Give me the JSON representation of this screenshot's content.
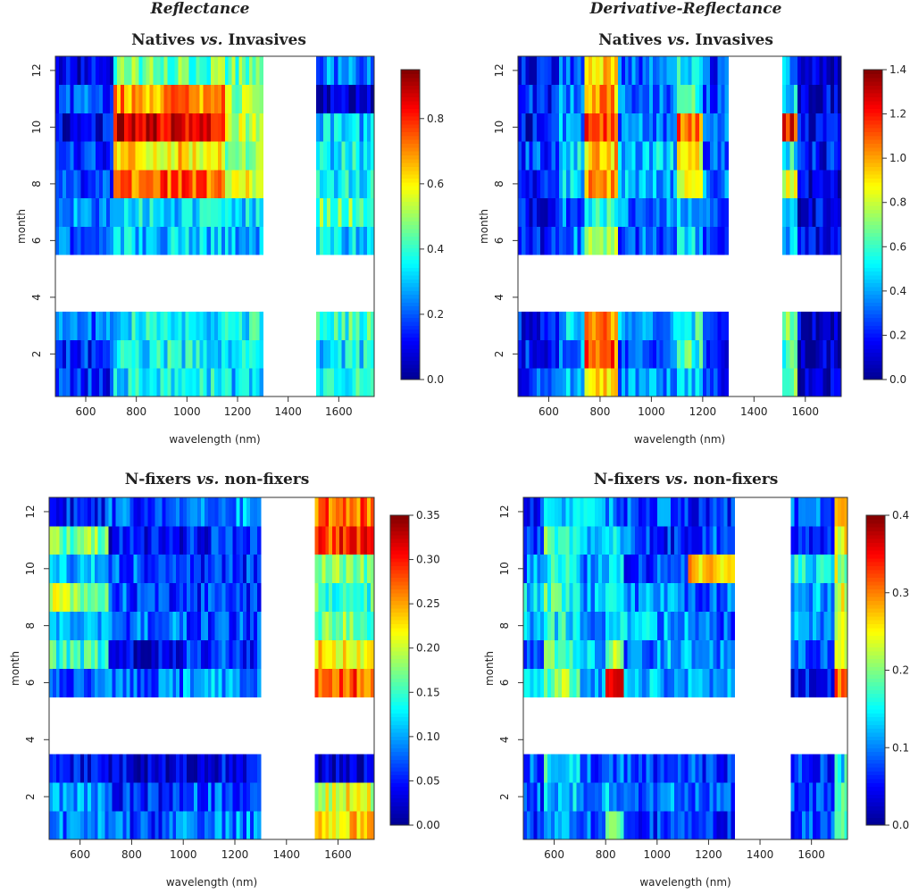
{
  "figure": {
    "column_titles": [
      "Reflectance",
      "Derivative-Reflectance"
    ],
    "row_titles": [
      {
        "left": "Natives",
        "mid": " vs. ",
        "right": "Invasives"
      },
      {
        "left": "N-fixers",
        "mid": " vs. ",
        "right": "non-fixers"
      }
    ]
  },
  "colormap": [
    "#00008f",
    "#0000ff",
    "#0080ff",
    "#00ffff",
    "#80ff80",
    "#ffff00",
    "#ff8000",
    "#ff0000",
    "#800000"
  ],
  "chart_data": [
    {
      "type": "heatmap",
      "id": "p1",
      "title": "Natives vs. Invasives",
      "xlabel": "wavelength (nm)",
      "ylabel": "month",
      "xlim": [
        480,
        1740
      ],
      "ylim": [
        0.5,
        12.5
      ],
      "xticks": [
        600,
        800,
        1000,
        1200,
        1400,
        1600
      ],
      "yticks": [
        2,
        4,
        6,
        8,
        10,
        12
      ],
      "colorbar_range": [
        0,
        0.95
      ],
      "colorbar_ticks": [
        {
          "v": 0,
          "label": "0.0"
        },
        {
          "v": 0.2,
          "label": "0.2"
        },
        {
          "v": 0.4,
          "label": "0.4"
        },
        {
          "v": 0.6,
          "label": "0.6"
        },
        {
          "v": 0.8,
          "label": "0.8"
        }
      ],
      "missing_months": [
        4,
        5
      ],
      "missing_wavelength_ranges": [
        [
          1300,
          1510
        ]
      ],
      "segments": [
        {
          "x0": 480,
          "x1": 710
        },
        {
          "x0": 710,
          "x1": 1150
        },
        {
          "x0": 1150,
          "x1": 1300
        },
        {
          "x0": 1510,
          "x1": 1740
        }
      ],
      "values": {
        "1": [
          0.15,
          0.35,
          0.32,
          0.38
        ],
        "2": [
          0.15,
          0.36,
          0.36,
          0.33
        ],
        "3": [
          0.22,
          0.35,
          0.36,
          0.4
        ],
        "6": [
          0.2,
          0.3,
          0.28,
          0.33
        ],
        "7": [
          0.25,
          0.33,
          0.31,
          0.45
        ],
        "8": [
          0.15,
          0.75,
          0.55,
          0.35
        ],
        "9": [
          0.15,
          0.62,
          0.5,
          0.35
        ],
        "10": [
          0.1,
          0.85,
          0.55,
          0.3
        ],
        "11": [
          0.2,
          0.7,
          0.5,
          0.05
        ],
        "12": [
          0.08,
          0.45,
          0.45,
          0.25
        ]
      }
    },
    {
      "type": "heatmap",
      "id": "p2",
      "title": "Natives vs. Invasives",
      "xlabel": "wavelength (nm)",
      "ylabel": "month",
      "xlim": [
        480,
        1740
      ],
      "ylim": [
        0.5,
        12.5
      ],
      "xticks": [
        600,
        800,
        1000,
        1200,
        1400,
        1600
      ],
      "yticks": [
        2,
        4,
        6,
        8,
        10,
        12
      ],
      "colorbar_range": [
        0,
        1.4
      ],
      "colorbar_ticks": [
        {
          "v": 0,
          "label": "0.0"
        },
        {
          "v": 0.2,
          "label": "0.2"
        },
        {
          "v": 0.4,
          "label": "0.4"
        },
        {
          "v": 0.6,
          "label": "0.6"
        },
        {
          "v": 0.8,
          "label": "0.8"
        },
        {
          "v": 1.0,
          "label": "1.0"
        },
        {
          "v": 1.2,
          "label": "1.2"
        },
        {
          "v": 1.4,
          "label": "1.4"
        }
      ],
      "missing_months": [
        4,
        5
      ],
      "missing_wavelength_ranges": [
        [
          1300,
          1510
        ]
      ],
      "segments": [
        {
          "x0": 480,
          "x1": 640
        },
        {
          "x0": 640,
          "x1": 740
        },
        {
          "x0": 740,
          "x1": 870
        },
        {
          "x0": 870,
          "x1": 1100
        },
        {
          "x0": 1100,
          "x1": 1200
        },
        {
          "x0": 1200,
          "x1": 1300
        },
        {
          "x0": 1510,
          "x1": 1570
        },
        {
          "x0": 1570,
          "x1": 1740
        }
      ],
      "values": {
        "1": [
          0.25,
          0.4,
          0.95,
          0.35,
          0.45,
          0.25,
          0.7,
          0.1
        ],
        "2": [
          0.2,
          0.35,
          1.1,
          0.3,
          0.6,
          0.2,
          0.6,
          0.12
        ],
        "3": [
          0.18,
          0.45,
          1.0,
          0.4,
          0.55,
          0.3,
          0.65,
          0.1
        ],
        "6": [
          0.2,
          0.35,
          0.7,
          0.3,
          0.45,
          0.25,
          0.4,
          0.15
        ],
        "7": [
          0.15,
          0.3,
          0.6,
          0.35,
          0.4,
          0.25,
          0.5,
          0.15
        ],
        "8": [
          0.2,
          0.45,
          1.0,
          0.4,
          0.9,
          0.35,
          0.8,
          0.15
        ],
        "9": [
          0.25,
          0.5,
          0.95,
          0.45,
          0.85,
          0.3,
          0.55,
          0.18
        ],
        "10": [
          0.15,
          0.4,
          1.15,
          0.35,
          1.1,
          0.3,
          1.2,
          0.15
        ],
        "11": [
          0.2,
          0.35,
          1.0,
          0.3,
          0.6,
          0.25,
          0.45,
          0.12
        ],
        "12": [
          0.15,
          0.3,
          0.95,
          0.3,
          0.5,
          0.25,
          0.4,
          0.1
        ]
      }
    },
    {
      "type": "heatmap",
      "id": "p3",
      "title": "N-fixers vs. non-fixers",
      "xlabel": "wavelength (nm)",
      "ylabel": "month",
      "xlim": [
        480,
        1740
      ],
      "ylim": [
        0.5,
        12.5
      ],
      "xticks": [
        600,
        800,
        1000,
        1200,
        1400,
        1600
      ],
      "yticks": [
        2,
        4,
        6,
        8,
        10,
        12
      ],
      "colorbar_range": [
        0,
        0.35
      ],
      "colorbar_ticks": [
        {
          "v": 0,
          "label": "0.00"
        },
        {
          "v": 0.05,
          "label": "0.05"
        },
        {
          "v": 0.1,
          "label": "0.10"
        },
        {
          "v": 0.15,
          "label": "0.15"
        },
        {
          "v": 0.2,
          "label": "0.20"
        },
        {
          "v": 0.25,
          "label": "0.25"
        },
        {
          "v": 0.3,
          "label": "0.30"
        },
        {
          "v": 0.35,
          "label": "0.35"
        }
      ],
      "missing_months": [
        4,
        5
      ],
      "missing_wavelength_ranges": [
        [
          1300,
          1510
        ]
      ],
      "segments": [
        {
          "x0": 480,
          "x1": 710
        },
        {
          "x0": 710,
          "x1": 1000
        },
        {
          "x0": 1000,
          "x1": 1300
        },
        {
          "x0": 1510,
          "x1": 1740
        }
      ],
      "values": {
        "1": [
          0.08,
          0.07,
          0.09,
          0.23
        ],
        "2": [
          0.09,
          0.05,
          0.07,
          0.21
        ],
        "3": [
          0.04,
          0.03,
          0.04,
          0.02
        ],
        "6": [
          0.07,
          0.08,
          0.1,
          0.28
        ],
        "7": [
          0.15,
          0.03,
          0.06,
          0.23
        ],
        "8": [
          0.11,
          0.08,
          0.07,
          0.17
        ],
        "9": [
          0.19,
          0.07,
          0.06,
          0.15
        ],
        "10": [
          0.1,
          0.07,
          0.06,
          0.17
        ],
        "11": [
          0.17,
          0.04,
          0.05,
          0.29
        ],
        "12": [
          0.05,
          0.07,
          0.1,
          0.27
        ]
      }
    },
    {
      "type": "heatmap",
      "id": "p4",
      "title": "N-fixers vs. non-fixers",
      "xlabel": "wavelength (nm)",
      "ylabel": "month",
      "xlim": [
        480,
        1740
      ],
      "ylim": [
        0.5,
        12.5
      ],
      "xticks": [
        600,
        800,
        1000,
        1200,
        1400,
        1600
      ],
      "yticks": [
        2,
        4,
        6,
        8,
        10,
        12
      ],
      "colorbar_range": [
        0,
        0.4
      ],
      "colorbar_ticks": [
        {
          "v": 0,
          "label": "0.0"
        },
        {
          "v": 0.1,
          "label": "0.1"
        },
        {
          "v": 0.2,
          "label": "0.2"
        },
        {
          "v": 0.3,
          "label": "0.3"
        },
        {
          "v": 0.4,
          "label": "0.4"
        }
      ],
      "missing_months": [
        4,
        5
      ],
      "missing_wavelength_ranges": [
        [
          1300,
          1520
        ]
      ],
      "segments": [
        {
          "x0": 480,
          "x1": 560
        },
        {
          "x0": 560,
          "x1": 700
        },
        {
          "x0": 700,
          "x1": 800
        },
        {
          "x0": 800,
          "x1": 870
        },
        {
          "x0": 870,
          "x1": 1000
        },
        {
          "x0": 1000,
          "x1": 1120
        },
        {
          "x0": 1120,
          "x1": 1300
        },
        {
          "x0": 1520,
          "x1": 1690
        },
        {
          "x0": 1690,
          "x1": 1740
        }
      ],
      "values": {
        "1": [
          0.06,
          0.1,
          0.08,
          0.18,
          0.07,
          0.08,
          0.06,
          0.07,
          0.2
        ],
        "2": [
          0.08,
          0.12,
          0.1,
          0.12,
          0.09,
          0.1,
          0.08,
          0.08,
          0.18
        ],
        "3": [
          0.09,
          0.15,
          0.08,
          0.1,
          0.07,
          0.09,
          0.07,
          0.06,
          0.15
        ],
        "6": [
          0.12,
          0.2,
          0.1,
          0.35,
          0.12,
          0.1,
          0.12,
          0.05,
          0.3
        ],
        "7": [
          0.1,
          0.18,
          0.12,
          0.2,
          0.08,
          0.12,
          0.1,
          0.08,
          0.22
        ],
        "8": [
          0.12,
          0.15,
          0.1,
          0.15,
          0.12,
          0.11,
          0.09,
          0.1,
          0.23
        ],
        "9": [
          0.14,
          0.17,
          0.12,
          0.13,
          0.1,
          0.1,
          0.09,
          0.12,
          0.24
        ],
        "10": [
          0.1,
          0.16,
          0.1,
          0.12,
          0.06,
          0.08,
          0.28,
          0.15,
          0.22
        ],
        "11": [
          0.08,
          0.18,
          0.1,
          0.14,
          0.08,
          0.06,
          0.08,
          0.07,
          0.26
        ],
        "12": [
          0.06,
          0.14,
          0.12,
          0.1,
          0.08,
          0.08,
          0.07,
          0.09,
          0.27
        ]
      }
    }
  ]
}
